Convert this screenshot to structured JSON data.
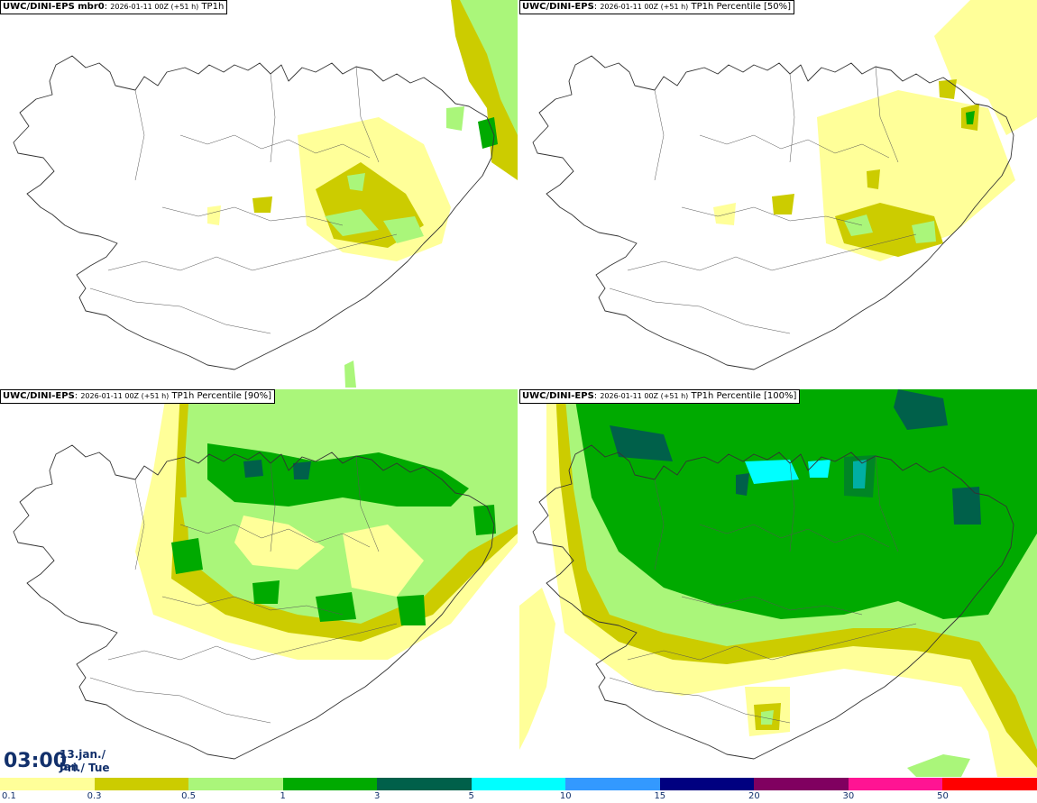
{
  "panels": [
    {
      "label": "UWC/DINI-EPS mbr0",
      "sep": ":",
      "run": "2026-01-11 00Z (+51 h)",
      "field": "TP1h"
    },
    {
      "label": "UWC/DINI-EPS",
      "sep": ":",
      "run": "2026-01-11 00Z (+51 h)",
      "field": "TP1h Percentile [50%]"
    },
    {
      "label": "UWC/DINI-EPS",
      "sep": ":",
      "run": "2026-01-11 00Z (+51 h)",
      "field": "TP1h Percentile [90%]"
    },
    {
      "label": "UWC/DINI-EPS",
      "sep": ":",
      "run": "2026-01-11 00Z (+51 h)",
      "field": "TP1h Percentile [100%]"
    }
  ],
  "valid_time": {
    "time": "03:00",
    "date": "13.jan./ Jan",
    "day": "Þri./ Tue"
  },
  "legend": {
    "ticks": [
      "0.1",
      "0.3",
      "0.5",
      "1",
      "3",
      "5",
      "10",
      "15",
      "20",
      "30",
      "50"
    ],
    "colors": [
      "#ffff99",
      "#cccc00",
      "#aaf67a",
      "#00aa00",
      "#00604a",
      "#00ffff",
      "#3399ff",
      "#000080",
      "#800060",
      "#ff1493",
      "#ff0000"
    ]
  },
  "palette": {
    "coast": "#333333",
    "l1": "#ffff99",
    "l2": "#cccc00",
    "l3": "#aaf67a",
    "l4": "#00aa00",
    "l5": "#00604a",
    "l6": "#00ffff",
    "text_dark": "#12306b"
  }
}
